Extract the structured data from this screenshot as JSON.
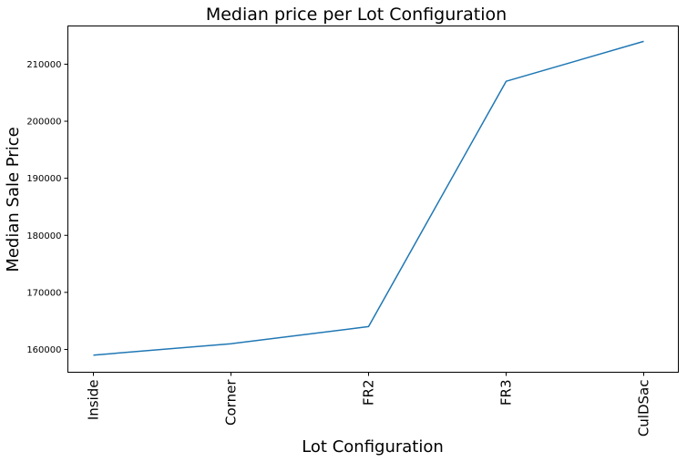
{
  "chart_data": {
    "type": "line",
    "title": "Median price per Lot Configuration",
    "xlabel": "Lot Configuration",
    "ylabel": "Median Sale Price",
    "categories": [
      "Inside",
      "Corner",
      "FR2",
      "FR3",
      "CulDSac"
    ],
    "series": [
      {
        "values": [
          159000,
          161000,
          164000,
          207000,
          214000
        ]
      }
    ],
    "yticks": [
      "160000",
      "170000",
      "180000",
      "190000",
      "200000",
      "210000"
    ],
    "ylim": [
      156000,
      216700
    ],
    "grid": false,
    "line_color": "#1f77b4"
  }
}
